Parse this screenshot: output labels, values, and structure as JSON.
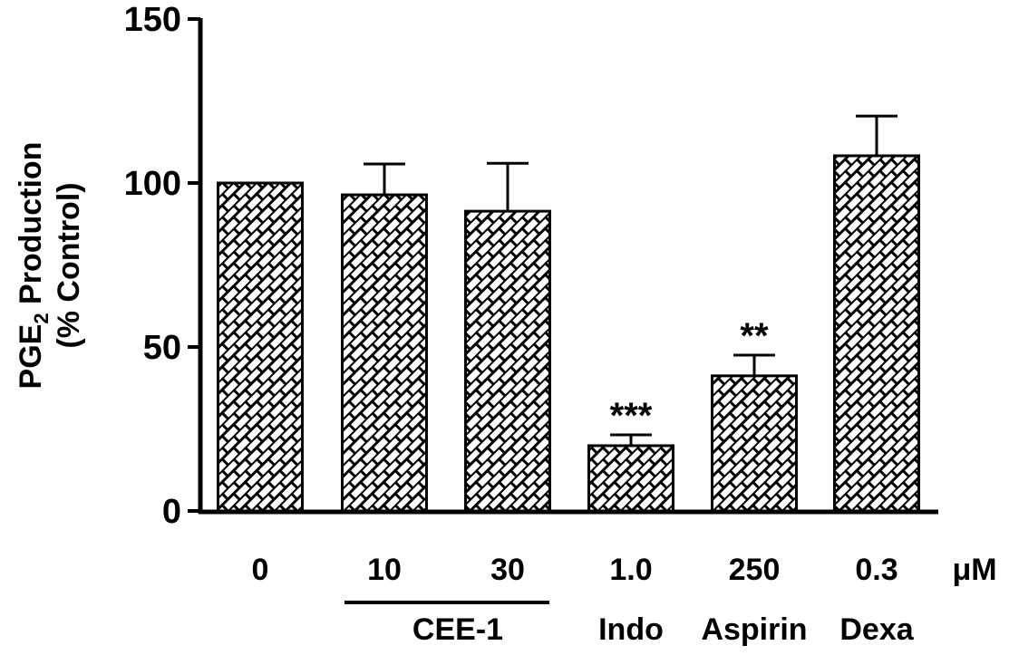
{
  "chart_data": {
    "type": "bar",
    "ylabel_line1_prefix": "PGE",
    "ylabel_subscript": "2",
    "ylabel_line1_suffix": " Production",
    "ylabel_line2": "(% Control)",
    "ylim": [
      0,
      150
    ],
    "yticks": [
      "0",
      "50",
      "100",
      "150"
    ],
    "categories": [
      "0",
      "10",
      "30",
      "1.0",
      "250",
      "0.3"
    ],
    "unit_label": "μM",
    "values": [
      100,
      96.4,
      91.4,
      19.9,
      41.2,
      108.3
    ],
    "error_upper": [
      100,
      105.8,
      106,
      23.2,
      47.5,
      120.4
    ],
    "significance": [
      "",
      "",
      "",
      "***",
      "**",
      ""
    ],
    "groups": [
      {
        "label": "CEE-1",
        "categories": [
          "10",
          "30"
        ],
        "underline": true
      },
      {
        "label": "Indo",
        "categories": [
          "1.0"
        ]
      },
      {
        "label": "Aspirin",
        "categories": [
          "250"
        ]
      },
      {
        "label": "Dexa",
        "categories": [
          "0.3"
        ]
      }
    ],
    "bar_fill": "brick-hatch",
    "colors": {
      "ink": "#000000",
      "background": "#ffffff"
    },
    "grid": false
  }
}
